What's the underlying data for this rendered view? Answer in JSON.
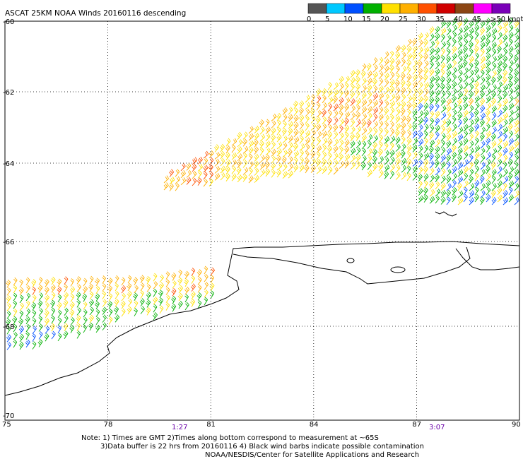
{
  "title": "ASCAT 25KM NOAA Winds 20160116 descending",
  "legend": {
    "labels": [
      "0",
      "5",
      "10",
      "15",
      "20",
      "25",
      "30",
      "35",
      "40",
      "45",
      ">50 knots"
    ],
    "colors": [
      "#555555",
      "#00c8ff",
      "#0050ff",
      "#00b000",
      "#ffe000",
      "#ffb000",
      "#ff5000",
      "#d00000",
      "#8b4513",
      "#ff00ff",
      "#7a00b8"
    ]
  },
  "axes": {
    "lon_ticks": [
      "75",
      "78",
      "81",
      "84",
      "87",
      "90"
    ],
    "lat_ticks": [
      "-60",
      "-62",
      "-64",
      "-66",
      "-68",
      "-70"
    ]
  },
  "times": [
    "1:27",
    "3:07"
  ],
  "notes": [
    "Note: 1) Times are GMT 2)Times along bottom correspond to measurement at ~65S",
    "3)Data buffer is 22 hrs from 20160116 4) Black wind barbs indicate possible contamination",
    "NOAA/NESDIS/Center for Satellite Applications and Research"
  ],
  "chart_data": {
    "type": "map",
    "lon_range": [
      75,
      90
    ],
    "lat_range": [
      -70,
      -60
    ],
    "grid": true,
    "units": "knots",
    "swaths": [
      {
        "time": "1:27",
        "region": "lon 75-81, lat -67.2 to -69.2",
        "typical_speed_knots": [
          15,
          25
        ]
      },
      {
        "time": "3:07",
        "region": "lon 79.5-90, lat -60 to -65.5",
        "typical_speed_knots": [
          15,
          30
        ]
      }
    ]
  }
}
